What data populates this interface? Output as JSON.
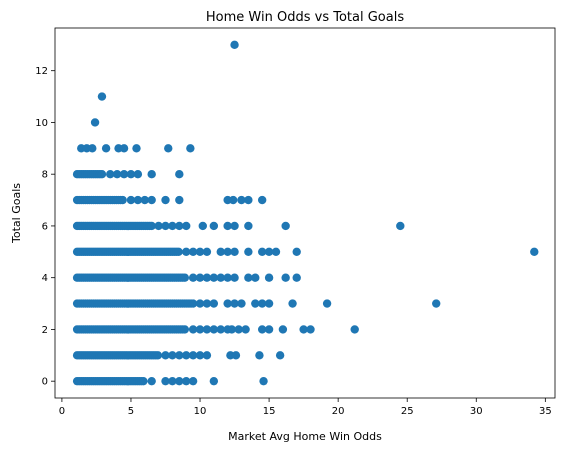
{
  "chart_data": {
    "type": "scatter",
    "title": "Home Win Odds vs Total Goals",
    "xlabel": "Market Avg Home Win Odds",
    "ylabel": "Total Goals",
    "xlim": [
      -0.5,
      35.7
    ],
    "ylim": [
      -0.65,
      13.65
    ],
    "xticks": [
      0,
      5,
      10,
      15,
      20,
      25,
      30,
      35
    ],
    "yticks": [
      0,
      2,
      4,
      6,
      8,
      10,
      12
    ],
    "grid": false,
    "marker_color": "#1f77b4",
    "series": [
      {
        "dense_bands": [
          {
            "y": 0,
            "x_range": [
              1.1,
              6.0
            ]
          },
          {
            "y": 1,
            "x_range": [
              1.1,
              7.0
            ]
          },
          {
            "y": 2,
            "x_range": [
              1.1,
              9.0
            ]
          },
          {
            "y": 3,
            "x_range": [
              1.1,
              9.5
            ]
          },
          {
            "y": 4,
            "x_range": [
              1.1,
              9.0
            ]
          },
          {
            "y": 5,
            "x_range": [
              1.1,
              8.5
            ]
          },
          {
            "y": 6,
            "x_range": [
              1.1,
              6.5
            ]
          },
          {
            "y": 7,
            "x_range": [
              1.1,
              4.5
            ]
          },
          {
            "y": 8,
            "x_range": [
              1.1,
              3.0
            ]
          }
        ],
        "points": [
          {
            "x": 6.5,
            "y": 0
          },
          {
            "x": 7.5,
            "y": 0
          },
          {
            "x": 8.0,
            "y": 0
          },
          {
            "x": 8.5,
            "y": 0
          },
          {
            "x": 9.0,
            "y": 0
          },
          {
            "x": 9.5,
            "y": 0
          },
          {
            "x": 11.0,
            "y": 0
          },
          {
            "x": 14.6,
            "y": 0
          },
          {
            "x": 7.5,
            "y": 1
          },
          {
            "x": 8.0,
            "y": 1
          },
          {
            "x": 8.5,
            "y": 1
          },
          {
            "x": 9.0,
            "y": 1
          },
          {
            "x": 9.5,
            "y": 1
          },
          {
            "x": 10.0,
            "y": 1
          },
          {
            "x": 10.5,
            "y": 1
          },
          {
            "x": 12.2,
            "y": 1
          },
          {
            "x": 12.6,
            "y": 1
          },
          {
            "x": 14.3,
            "y": 1
          },
          {
            "x": 15.8,
            "y": 1
          },
          {
            "x": 9.5,
            "y": 2
          },
          {
            "x": 10.0,
            "y": 2
          },
          {
            "x": 10.5,
            "y": 2
          },
          {
            "x": 11.0,
            "y": 2
          },
          {
            "x": 11.5,
            "y": 2
          },
          {
            "x": 12.0,
            "y": 2
          },
          {
            "x": 12.3,
            "y": 2
          },
          {
            "x": 12.8,
            "y": 2
          },
          {
            "x": 13.3,
            "y": 2
          },
          {
            "x": 14.5,
            "y": 2
          },
          {
            "x": 15.0,
            "y": 2
          },
          {
            "x": 16.0,
            "y": 2
          },
          {
            "x": 17.5,
            "y": 2
          },
          {
            "x": 18.0,
            "y": 2
          },
          {
            "x": 21.2,
            "y": 2
          },
          {
            "x": 10.0,
            "y": 3
          },
          {
            "x": 10.5,
            "y": 3
          },
          {
            "x": 11.0,
            "y": 3
          },
          {
            "x": 12.0,
            "y": 3
          },
          {
            "x": 12.5,
            "y": 3
          },
          {
            "x": 13.0,
            "y": 3
          },
          {
            "x": 14.0,
            "y": 3
          },
          {
            "x": 14.5,
            "y": 3
          },
          {
            "x": 15.0,
            "y": 3
          },
          {
            "x": 16.7,
            "y": 3
          },
          {
            "x": 19.2,
            "y": 3
          },
          {
            "x": 27.1,
            "y": 3
          },
          {
            "x": 9.5,
            "y": 4
          },
          {
            "x": 10.0,
            "y": 4
          },
          {
            "x": 10.5,
            "y": 4
          },
          {
            "x": 11.0,
            "y": 4
          },
          {
            "x": 11.5,
            "y": 4
          },
          {
            "x": 12.0,
            "y": 4
          },
          {
            "x": 12.5,
            "y": 4
          },
          {
            "x": 13.5,
            "y": 4
          },
          {
            "x": 14.0,
            "y": 4
          },
          {
            "x": 15.0,
            "y": 4
          },
          {
            "x": 16.2,
            "y": 4
          },
          {
            "x": 17.0,
            "y": 4
          },
          {
            "x": 9.0,
            "y": 5
          },
          {
            "x": 9.5,
            "y": 5
          },
          {
            "x": 10.0,
            "y": 5
          },
          {
            "x": 10.5,
            "y": 5
          },
          {
            "x": 11.5,
            "y": 5
          },
          {
            "x": 12.0,
            "y": 5
          },
          {
            "x": 12.5,
            "y": 5
          },
          {
            "x": 13.5,
            "y": 5
          },
          {
            "x": 14.5,
            "y": 5
          },
          {
            "x": 15.0,
            "y": 5
          },
          {
            "x": 15.5,
            "y": 5
          },
          {
            "x": 17.0,
            "y": 5
          },
          {
            "x": 34.2,
            "y": 5
          },
          {
            "x": 7.0,
            "y": 6
          },
          {
            "x": 7.5,
            "y": 6
          },
          {
            "x": 8.0,
            "y": 6
          },
          {
            "x": 8.5,
            "y": 6
          },
          {
            "x": 9.0,
            "y": 6
          },
          {
            "x": 10.2,
            "y": 6
          },
          {
            "x": 11.0,
            "y": 6
          },
          {
            "x": 12.0,
            "y": 6
          },
          {
            "x": 12.5,
            "y": 6
          },
          {
            "x": 13.5,
            "y": 6
          },
          {
            "x": 16.2,
            "y": 6
          },
          {
            "x": 24.5,
            "y": 6
          },
          {
            "x": 5.0,
            "y": 7
          },
          {
            "x": 5.5,
            "y": 7
          },
          {
            "x": 6.0,
            "y": 7
          },
          {
            "x": 6.5,
            "y": 7
          },
          {
            "x": 7.5,
            "y": 7
          },
          {
            "x": 8.5,
            "y": 7
          },
          {
            "x": 12.0,
            "y": 7
          },
          {
            "x": 12.4,
            "y": 7
          },
          {
            "x": 13.0,
            "y": 7
          },
          {
            "x": 13.5,
            "y": 7
          },
          {
            "x": 14.5,
            "y": 7
          },
          {
            "x": 3.5,
            "y": 8
          },
          {
            "x": 4.0,
            "y": 8
          },
          {
            "x": 4.5,
            "y": 8
          },
          {
            "x": 5.0,
            "y": 8
          },
          {
            "x": 5.5,
            "y": 8
          },
          {
            "x": 6.5,
            "y": 8
          },
          {
            "x": 8.5,
            "y": 8
          },
          {
            "x": 1.4,
            "y": 9
          },
          {
            "x": 1.8,
            "y": 9
          },
          {
            "x": 2.2,
            "y": 9
          },
          {
            "x": 3.2,
            "y": 9
          },
          {
            "x": 4.1,
            "y": 9
          },
          {
            "x": 4.5,
            "y": 9
          },
          {
            "x": 5.4,
            "y": 9
          },
          {
            "x": 7.7,
            "y": 9
          },
          {
            "x": 9.3,
            "y": 9
          },
          {
            "x": 2.4,
            "y": 10
          },
          {
            "x": 2.9,
            "y": 11
          },
          {
            "x": 12.5,
            "y": 13
          }
        ]
      }
    ]
  }
}
